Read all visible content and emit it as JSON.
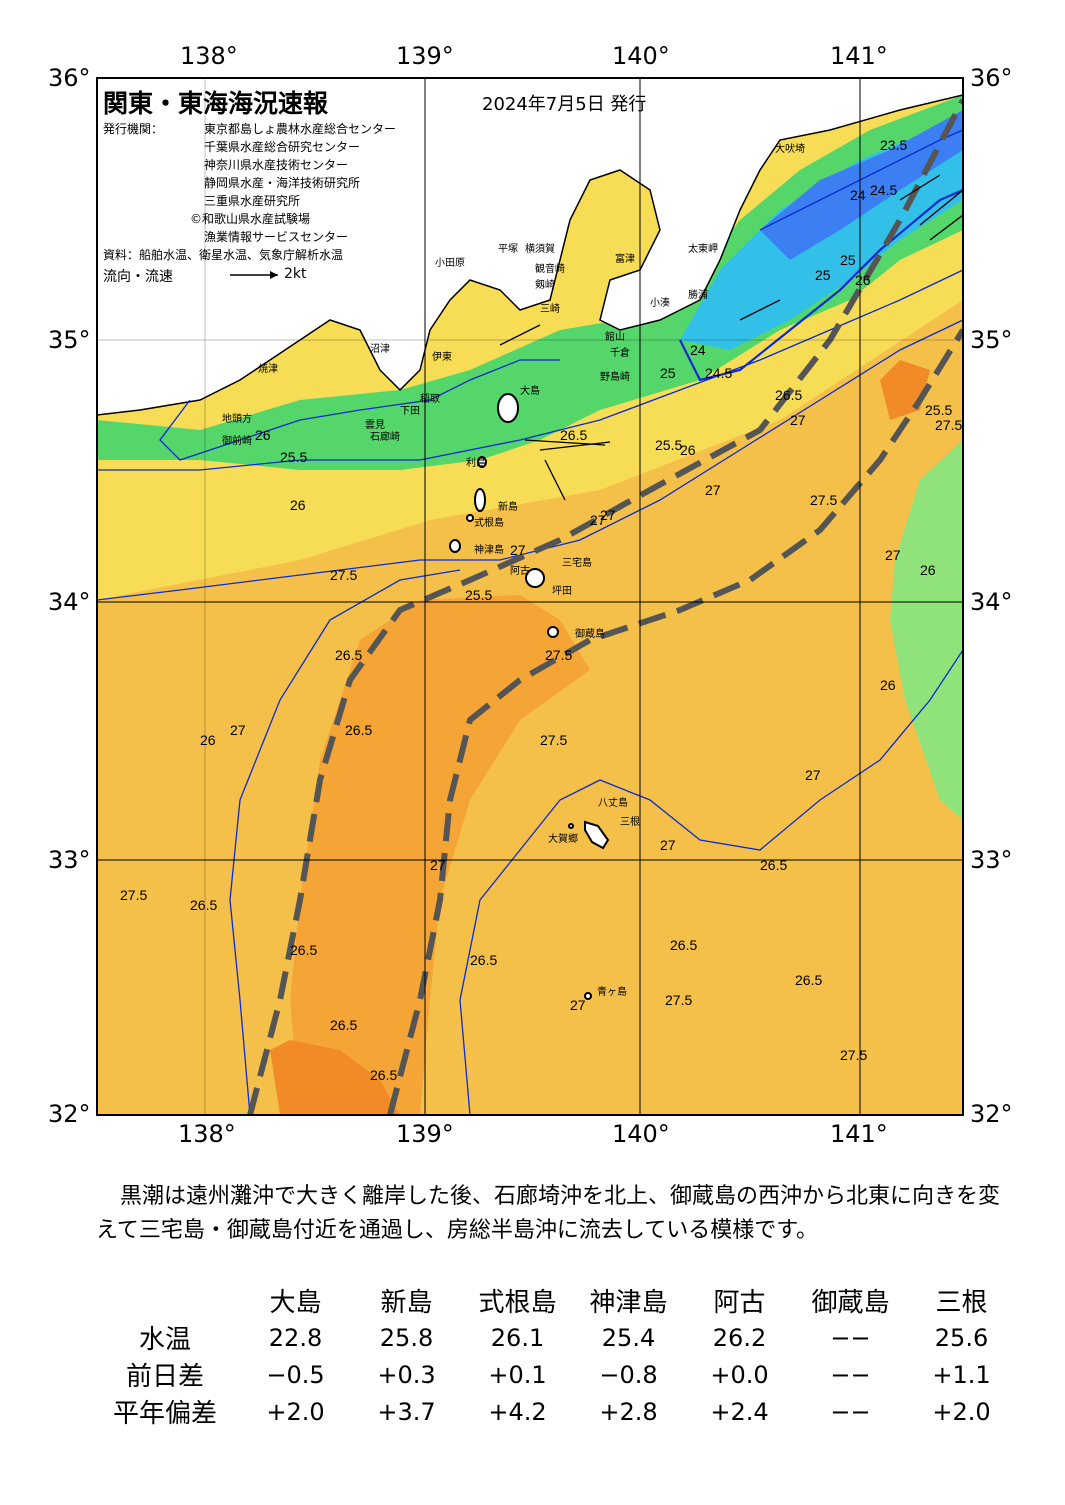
{
  "header": {
    "title": "関東・東海海況速報",
    "date": "2024年7月5日 発行",
    "issuers_label": "発行機関：",
    "issuers": [
      "東京都島しょ農林水産総合センター",
      "千葉県水産総合研究センター",
      "神奈川県水産技術センター",
      "静岡県水産・海洋技術研究所",
      "三重県水産研究所",
      "©和歌山県水産試験場",
      "漁業情報サービスセンター"
    ],
    "source": "資料：船舶水温、衛星水温、気象庁解析水温",
    "flow_label": "流向・流速",
    "flow_scale": "2kt"
  },
  "axes": {
    "lon_labels": [
      "138°",
      "139°",
      "140°",
      "141°"
    ],
    "lat_labels": [
      "36°",
      "35°",
      "34°",
      "33°",
      "32°"
    ]
  },
  "place_names": [
    "大吠埼",
    "太東岬",
    "勝浦",
    "小湊",
    "館山",
    "千倉",
    "野島崎",
    "富津",
    "観音崎",
    "剱崎",
    "三崎",
    "平塚",
    "横須賀",
    "小田原",
    "伊東",
    "稲取",
    "下田",
    "石廊崎",
    "雲見",
    "沼津",
    "焼津",
    "御前崎",
    "地頭方",
    "大島",
    "利島",
    "新島",
    "式根島",
    "神津島",
    "三宅島",
    "阿古",
    "坪田",
    "御蔵島",
    "八丈島",
    "三根",
    "大賀郷",
    "青ヶ島"
  ],
  "isotherm_labels": [
    "23.5",
    "24.5",
    "24",
    "25",
    "24",
    "25",
    "26",
    "24.5",
    "25",
    "26.5",
    "27",
    "26",
    "25.5",
    "26",
    "25.5",
    "26",
    "26.5",
    "27",
    "27",
    "27",
    "27",
    "27",
    "26",
    "25.5",
    "27.5",
    "26.5",
    "27",
    "26.5",
    "27.5",
    "27.5",
    "27.5",
    "27",
    "27.5",
    "26.5",
    "27",
    "27",
    "26.5",
    "26.5",
    "27.5",
    "27",
    "26.5",
    "26.5",
    "26.5",
    "26.5",
    "26.5",
    "27.5",
    "27.5",
    "26",
    "25.5",
    "26"
  ],
  "colors": {
    "cold_blue": "#3b7ff2",
    "cool_cyan": "#33c0e8",
    "green": "#55d66b",
    "light_green": "#8fe37a",
    "yellow": "#f7dd55",
    "light_orange": "#f5c04a",
    "orange": "#f5a535",
    "dark_orange": "#f08b28",
    "kuroshio_axis": "#555555",
    "contour": "#0a2bd0"
  },
  "summary": "黒潮は遠州灘沖で大きく離岸した後、石廊埼沖を北上、御蔵島の西沖から北東に向きを変えて三宅島・御蔵島付近を通過し、房総半島沖に流去している模様です。",
  "obs_table": {
    "stations": [
      "大島",
      "新島",
      "式根島",
      "神津島",
      "阿古",
      "御蔵島",
      "三根"
    ],
    "rows": [
      {
        "label": "水温",
        "values": [
          "22.8",
          "25.8",
          "26.1",
          "25.4",
          "26.2",
          "−−",
          "25.6"
        ]
      },
      {
        "label": "前日差",
        "values": [
          "−0.5",
          "+0.3",
          "+0.1",
          "−0.8",
          "+0.0",
          "−−",
          "+1.1"
        ]
      },
      {
        "label": "平年偏差",
        "values": [
          "+2.0",
          "+3.7",
          "+4.2",
          "+2.8",
          "+2.4",
          "−−",
          "+2.0"
        ]
      }
    ]
  }
}
